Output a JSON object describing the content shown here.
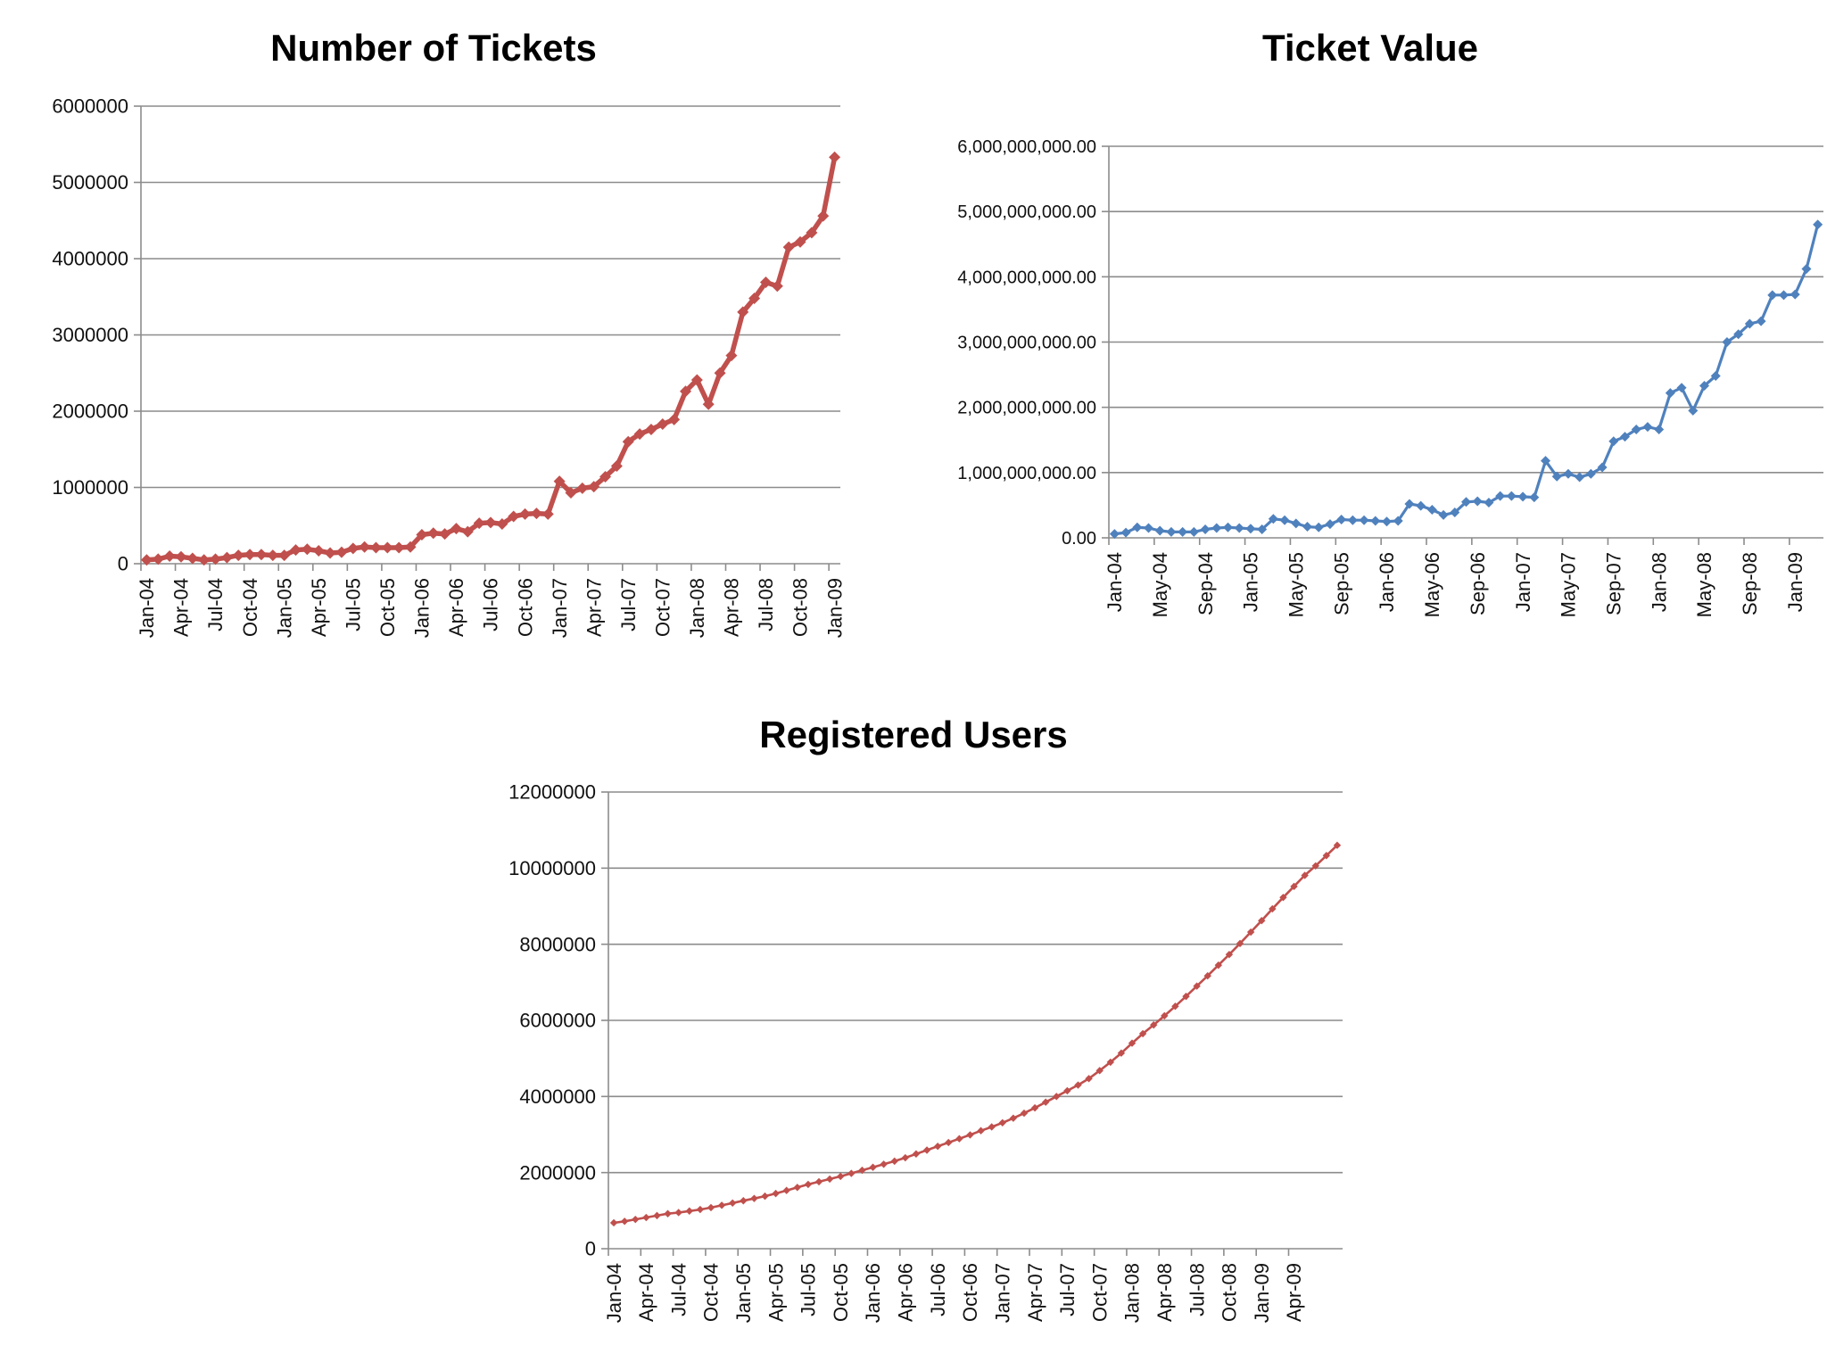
{
  "chart_data": [
    {
      "type": "line",
      "title": "Number of Tickets",
      "xlabel": "",
      "ylabel": "",
      "ylim": [
        0,
        6000000
      ],
      "y_ticks": [
        0,
        1000000,
        2000000,
        3000000,
        4000000,
        5000000,
        6000000
      ],
      "y_tick_labels": [
        "0",
        "1000000",
        "2000000",
        "3000000",
        "4000000",
        "5000000",
        "6000000"
      ],
      "x_start": "Jan-04",
      "x_tick_labels": [
        "Jan-04",
        "Apr-04",
        "Jul-04",
        "Oct-04",
        "Jan-05",
        "Apr-05",
        "Jul-05",
        "Oct-05",
        "Jan-06",
        "Apr-06",
        "Jul-06",
        "Oct-06",
        "Jan-07",
        "Apr-07",
        "Jul-07",
        "Oct-07",
        "Jan-08",
        "Apr-08",
        "Jul-08",
        "Oct-08",
        "Jan-09"
      ],
      "x_tick_step_months": 3,
      "color": "#c0504d",
      "series": [
        {
          "name": "Number of Tickets",
          "values": [
            50000,
            60000,
            100000,
            90000,
            70000,
            50000,
            60000,
            80000,
            110000,
            120000,
            120000,
            110000,
            110000,
            180000,
            190000,
            170000,
            140000,
            150000,
            200000,
            220000,
            210000,
            210000,
            210000,
            220000,
            380000,
            400000,
            390000,
            460000,
            420000,
            530000,
            540000,
            520000,
            620000,
            650000,
            660000,
            650000,
            1080000,
            930000,
            990000,
            1010000,
            1140000,
            1280000,
            1600000,
            1700000,
            1760000,
            1830000,
            1890000,
            2260000,
            2410000,
            2090000,
            2500000,
            2730000,
            3300000,
            3480000,
            3690000,
            3640000,
            4150000,
            4220000,
            4340000,
            4560000,
            5330000
          ]
        }
      ]
    },
    {
      "type": "line",
      "title": "Ticket Value",
      "xlabel": "",
      "ylabel": "",
      "ylim": [
        0,
        6000000000
      ],
      "y_ticks": [
        0,
        1000000000,
        2000000000,
        3000000000,
        4000000000,
        5000000000,
        6000000000
      ],
      "y_tick_labels": [
        "0.00",
        "1,000,000,000.00",
        "2,000,000,000.00",
        "3,000,000,000.00",
        "4,000,000,000.00",
        "5,000,000,000.00",
        "6,000,000,000.00"
      ],
      "x_start": "Jan-04",
      "x_tick_labels": [
        "Jan-04",
        "May-04",
        "Sep-04",
        "Jan-05",
        "May-05",
        "Sep-05",
        "Jan-06",
        "May-06",
        "Sep-06",
        "Jan-07",
        "May-07",
        "Sep-07",
        "Jan-08",
        "May-08",
        "Sep-08",
        "Jan-09"
      ],
      "x_tick_step_months": 4,
      "color": "#4f81bd",
      "series": [
        {
          "name": "Ticket Value",
          "values": [
            60000000,
            80000000,
            160000000,
            150000000,
            110000000,
            90000000,
            90000000,
            90000000,
            130000000,
            150000000,
            160000000,
            150000000,
            140000000,
            130000000,
            290000000,
            270000000,
            220000000,
            170000000,
            160000000,
            210000000,
            280000000,
            270000000,
            270000000,
            260000000,
            250000000,
            260000000,
            520000000,
            490000000,
            430000000,
            350000000,
            390000000,
            550000000,
            560000000,
            540000000,
            640000000,
            640000000,
            630000000,
            620000000,
            1180000000,
            940000000,
            980000000,
            930000000,
            980000000,
            1080000000,
            1480000000,
            1550000000,
            1660000000,
            1700000000,
            1660000000,
            2220000000,
            2300000000,
            1950000000,
            2330000000,
            2480000000,
            3000000000,
            3120000000,
            3280000000,
            3320000000,
            3720000000,
            3720000000,
            3730000000,
            4120000000,
            4800000000
          ]
        }
      ]
    },
    {
      "type": "line",
      "title": "Registered Users",
      "xlabel": "",
      "ylabel": "",
      "ylim": [
        0,
        12000000
      ],
      "y_ticks": [
        0,
        2000000,
        4000000,
        6000000,
        8000000,
        10000000,
        12000000
      ],
      "y_tick_labels": [
        "0",
        "2000000",
        "4000000",
        "6000000",
        "8000000",
        "10000000",
        "12000000"
      ],
      "x_start": "Jan-04",
      "x_tick_labels": [
        "Jan-04",
        "Apr-04",
        "Jul-04",
        "Oct-04",
        "Jan-05",
        "Apr-05",
        "Jul-05",
        "Oct-05",
        "Jan-06",
        "Apr-06",
        "Jul-06",
        "Oct-06",
        "Jan-07",
        "Apr-07",
        "Jul-07",
        "Oct-07",
        "Jan-08",
        "Apr-08",
        "Jul-08",
        "Oct-08",
        "Jan-09",
        "Apr-09"
      ],
      "x_tick_step_months": 3,
      "color": "#c0504d",
      "series": [
        {
          "name": "Registered Users",
          "values": [
            680000,
            720000,
            770000,
            820000,
            870000,
            920000,
            950000,
            990000,
            1030000,
            1080000,
            1140000,
            1200000,
            1260000,
            1320000,
            1380000,
            1450000,
            1530000,
            1610000,
            1690000,
            1760000,
            1830000,
            1900000,
            1980000,
            2060000,
            2140000,
            2220000,
            2300000,
            2390000,
            2490000,
            2590000,
            2690000,
            2790000,
            2890000,
            2990000,
            3100000,
            3200000,
            3310000,
            3430000,
            3560000,
            3700000,
            3850000,
            4000000,
            4150000,
            4300000,
            4470000,
            4680000,
            4900000,
            5140000,
            5400000,
            5650000,
            5880000,
            6120000,
            6370000,
            6630000,
            6900000,
            7170000,
            7450000,
            7730000,
            8020000,
            8320000,
            8620000,
            8930000,
            9230000,
            9520000,
            9810000,
            10060000,
            10330000,
            10600000
          ]
        }
      ]
    }
  ]
}
